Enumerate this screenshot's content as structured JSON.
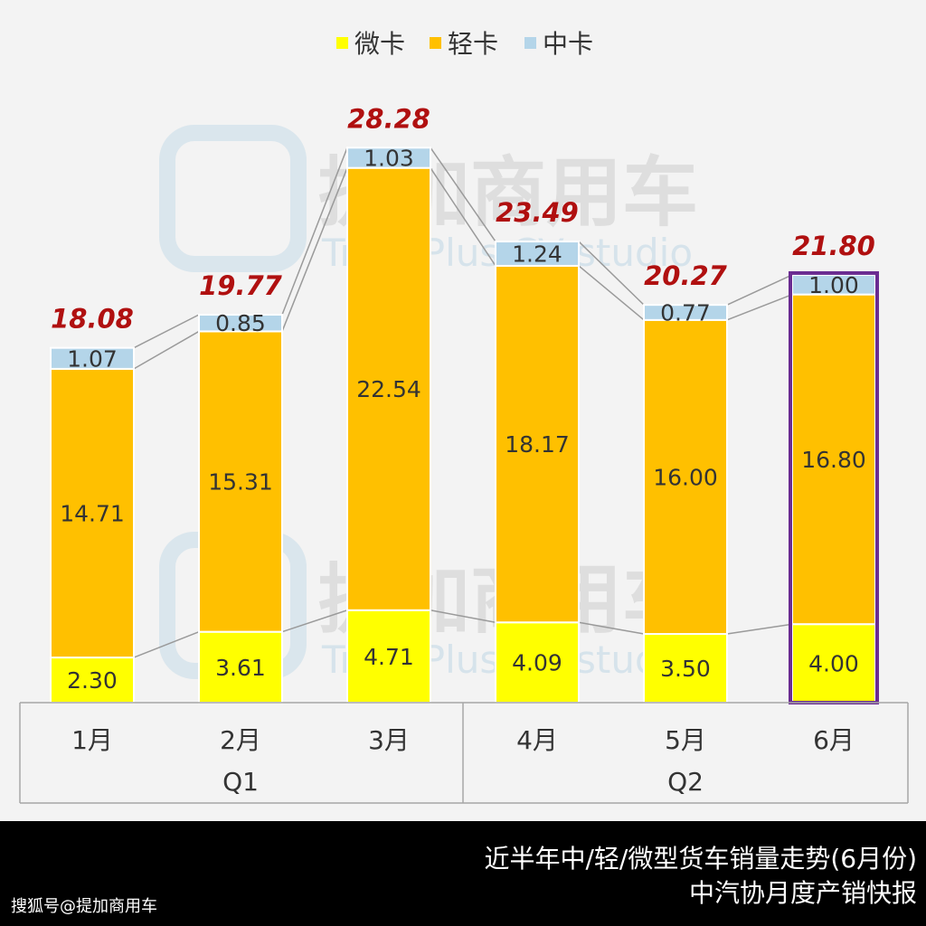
{
  "chart_data": {
    "type": "bar",
    "stacked": true,
    "categories": [
      "1月",
      "2月",
      "3月",
      "4月",
      "5月",
      "6月"
    ],
    "groups": [
      {
        "label": "Q1",
        "categories": [
          "1月",
          "2月",
          "3月"
        ]
      },
      {
        "label": "Q2",
        "categories": [
          "4月",
          "5月",
          "6月"
        ]
      }
    ],
    "series": [
      {
        "name": "微卡",
        "color": "#ffff00",
        "values": [
          2.3,
          3.61,
          4.71,
          4.09,
          3.5,
          4.0
        ]
      },
      {
        "name": "轻卡",
        "color": "#ffc000",
        "values": [
          14.71,
          15.31,
          22.54,
          18.17,
          16.0,
          16.8
        ]
      },
      {
        "name": "中卡",
        "color": "#b4d5e9",
        "values": [
          1.07,
          0.85,
          1.03,
          1.24,
          0.77,
          1.0
        ]
      }
    ],
    "totals": [
      18.08,
      19.77,
      28.28,
      23.49,
      20.27,
      21.8
    ],
    "total_color": "#b01010",
    "highlight_category": "6月",
    "highlight_color": "#6a2c91",
    "legend_position": "top-center",
    "grid": false,
    "ylim": [
      0,
      30
    ]
  },
  "watermark": {
    "brand": "提加商用车",
    "sub": "TruckPlus CV studio"
  },
  "footer": {
    "title": "近半年中/轻/微型货车销量走势(6月份)",
    "subtitle": "中汽协月度产销快报",
    "source": "搜狐号@提加商用车"
  }
}
